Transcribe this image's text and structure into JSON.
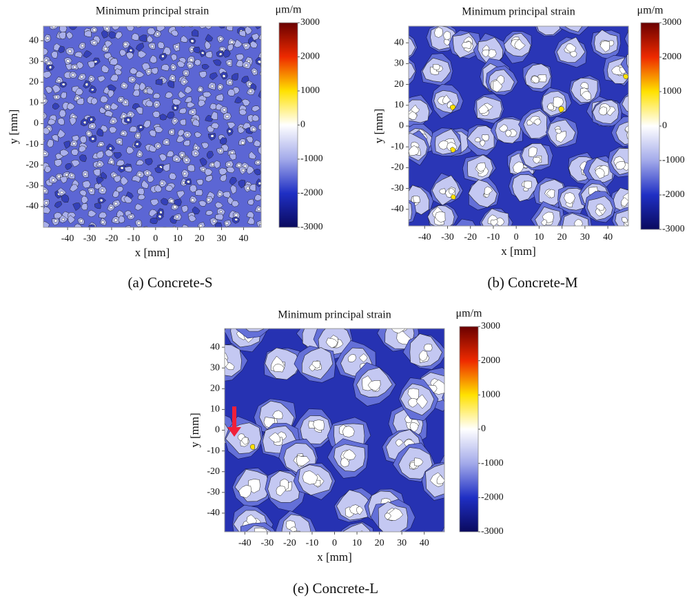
{
  "chart_data": [
    {
      "type": "contour",
      "title": "Minimum principal strain",
      "caption": "(a) Concrete-S",
      "xlabel": "x [mm]",
      "ylabel": "y [mm]",
      "xlim": [
        -51,
        48
      ],
      "xticks": [
        -40,
        -30,
        -20,
        -10,
        0,
        10,
        20,
        30,
        40
      ],
      "ylim": [
        -50,
        47
      ],
      "yticks": [
        -40,
        -30,
        -20,
        -10,
        0,
        10,
        20,
        30,
        40
      ],
      "colorbar": {
        "label": "μm/m",
        "lim": [
          -3000,
          3000
        ],
        "ticks": [
          -3000,
          -2000,
          -1000,
          0,
          1000,
          2000,
          3000
        ],
        "colormap": [
          "#0a0a5e",
          "#1f2fc4",
          "#a3aaea",
          "#ffffff",
          "#ffe100",
          "#ee2a00",
          "#6a0000"
        ]
      }
    },
    {
      "type": "contour",
      "title": "Minimum principal strain",
      "caption": "(b) Concrete-M",
      "xlabel": "x [mm]",
      "ylabel": "y [mm]",
      "xlim": [
        -47,
        49
      ],
      "xticks": [
        -40,
        -30,
        -20,
        -10,
        0,
        10,
        20,
        30,
        40
      ],
      "ylim": [
        -48,
        48
      ],
      "yticks": [
        -40,
        -30,
        -20,
        -10,
        0,
        10,
        20,
        30,
        40
      ],
      "colorbar": {
        "label": "μm/m",
        "lim": [
          -3000,
          3000
        ],
        "ticks": [
          -3000,
          -2000,
          -1000,
          0,
          1000,
          2000,
          3000
        ],
        "colormap": [
          "#0a0a5e",
          "#1f2fc4",
          "#a3aaea",
          "#ffffff",
          "#ffe100",
          "#ee2a00",
          "#6a0000"
        ]
      }
    },
    {
      "type": "contour",
      "title": "Minimum principal strain",
      "caption": "(e) Concrete-L",
      "xlabel": "x [mm]",
      "ylabel": "y [mm]",
      "xlim": [
        -49,
        49
      ],
      "xticks": [
        -40,
        -30,
        -20,
        -10,
        0,
        10,
        20,
        30,
        40
      ],
      "ylim": [
        -49,
        49
      ],
      "yticks": [
        -40,
        -30,
        -20,
        -10,
        0,
        10,
        20,
        30,
        40
      ],
      "colorbar": {
        "label": "μm/m",
        "lim": [
          -3000,
          3000
        ],
        "ticks": [
          -3000,
          -2000,
          -1000,
          0,
          1000,
          2000,
          3000
        ],
        "colormap": [
          "#0a0a5e",
          "#1f2fc4",
          "#a3aaea",
          "#ffffff",
          "#ffe100",
          "#ee2a00",
          "#6a0000"
        ]
      }
    }
  ]
}
